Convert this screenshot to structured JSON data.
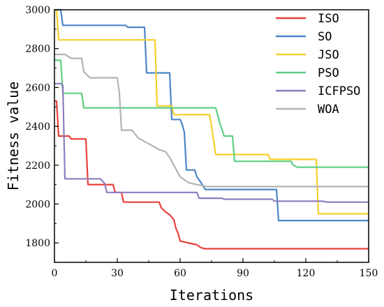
{
  "chart_data": {
    "type": "line",
    "xlabel": "Iterations",
    "ylabel": "Fitness value",
    "xlim": [
      0,
      150
    ],
    "ylim": [
      1700,
      3000
    ],
    "xticks": [
      0,
      30,
      60,
      90,
      120,
      150
    ],
    "yticks": [
      1800,
      2000,
      2200,
      2400,
      2600,
      2800,
      3000
    ],
    "grid": false,
    "legend_position": "top-right",
    "series": [
      {
        "name": "ISO",
        "color": "#e8403c",
        "points": [
          [
            0,
            2530
          ],
          [
            1,
            2530
          ],
          [
            2,
            2350
          ],
          [
            7,
            2350
          ],
          [
            8,
            2335
          ],
          [
            15,
            2335
          ],
          [
            16,
            2100
          ],
          [
            28,
            2100
          ],
          [
            29,
            2060
          ],
          [
            32,
            2060
          ],
          [
            33,
            2010
          ],
          [
            50,
            2010
          ],
          [
            51,
            1980
          ],
          [
            53,
            1960
          ],
          [
            55,
            1945
          ],
          [
            57,
            1920
          ],
          [
            58,
            1875
          ],
          [
            59,
            1850
          ],
          [
            60,
            1810
          ],
          [
            62,
            1805
          ],
          [
            64,
            1800
          ],
          [
            66,
            1795
          ],
          [
            68,
            1790
          ],
          [
            70,
            1775
          ],
          [
            72,
            1770
          ],
          [
            150,
            1770
          ]
        ]
      },
      {
        "name": "SO",
        "color": "#4a86c6",
        "points": [
          [
            0,
            3000
          ],
          [
            3,
            3000
          ],
          [
            4,
            2920
          ],
          [
            34,
            2920
          ],
          [
            35,
            2910
          ],
          [
            43,
            2910
          ],
          [
            44,
            2675
          ],
          [
            55,
            2675
          ],
          [
            56,
            2435
          ],
          [
            60,
            2435
          ],
          [
            61,
            2410
          ],
          [
            62,
            2370
          ],
          [
            63,
            2175
          ],
          [
            67,
            2175
          ],
          [
            68,
            2140
          ],
          [
            70,
            2110
          ],
          [
            72,
            2075
          ],
          [
            106,
            2075
          ],
          [
            107,
            1915
          ],
          [
            150,
            1915
          ]
        ]
      },
      {
        "name": "JSO",
        "color": "#f4cf2b",
        "points": [
          [
            0,
            3000
          ],
          [
            1,
            3000
          ],
          [
            2,
            2845
          ],
          [
            48,
            2845
          ],
          [
            49,
            2505
          ],
          [
            56,
            2505
          ],
          [
            57,
            2460
          ],
          [
            74,
            2460
          ],
          [
            75,
            2400
          ],
          [
            77,
            2255
          ],
          [
            102,
            2255
          ],
          [
            103,
            2230
          ],
          [
            125,
            2230
          ],
          [
            126,
            1950
          ],
          [
            150,
            1950
          ]
        ]
      },
      {
        "name": "PSO",
        "color": "#5fcf86",
        "points": [
          [
            0,
            2740
          ],
          [
            3,
            2740
          ],
          [
            4,
            2570
          ],
          [
            13,
            2570
          ],
          [
            14,
            2495
          ],
          [
            77,
            2495
          ],
          [
            79,
            2415
          ],
          [
            81,
            2350
          ],
          [
            85,
            2350
          ],
          [
            86,
            2220
          ],
          [
            113,
            2220
          ],
          [
            114,
            2200
          ],
          [
            116,
            2190
          ],
          [
            150,
            2190
          ]
        ]
      },
      {
        "name": "ICFPSO",
        "color": "#8e7dbf",
        "points": [
          [
            0,
            2620
          ],
          [
            3,
            2620
          ],
          [
            4,
            2610
          ],
          [
            5,
            2130
          ],
          [
            22,
            2130
          ],
          [
            24,
            2105
          ],
          [
            25,
            2060
          ],
          [
            68,
            2060
          ],
          [
            69,
            2030
          ],
          [
            80,
            2030
          ],
          [
            81,
            2025
          ],
          [
            104,
            2025
          ],
          [
            105,
            2015
          ],
          [
            128,
            2015
          ],
          [
            130,
            2010
          ],
          [
            150,
            2010
          ]
        ]
      },
      {
        "name": "WOA",
        "color": "#b3b3b3",
        "points": [
          [
            0,
            2770
          ],
          [
            5,
            2770
          ],
          [
            8,
            2750
          ],
          [
            13,
            2750
          ],
          [
            14,
            2680
          ],
          [
            17,
            2650
          ],
          [
            30,
            2650
          ],
          [
            31,
            2570
          ],
          [
            32,
            2380
          ],
          [
            37,
            2380
          ],
          [
            40,
            2340
          ],
          [
            45,
            2310
          ],
          [
            50,
            2280
          ],
          [
            53,
            2270
          ],
          [
            55,
            2240
          ],
          [
            57,
            2200
          ],
          [
            60,
            2140
          ],
          [
            64,
            2110
          ],
          [
            68,
            2100
          ],
          [
            73,
            2090
          ],
          [
            150,
            2090
          ]
        ]
      }
    ]
  }
}
